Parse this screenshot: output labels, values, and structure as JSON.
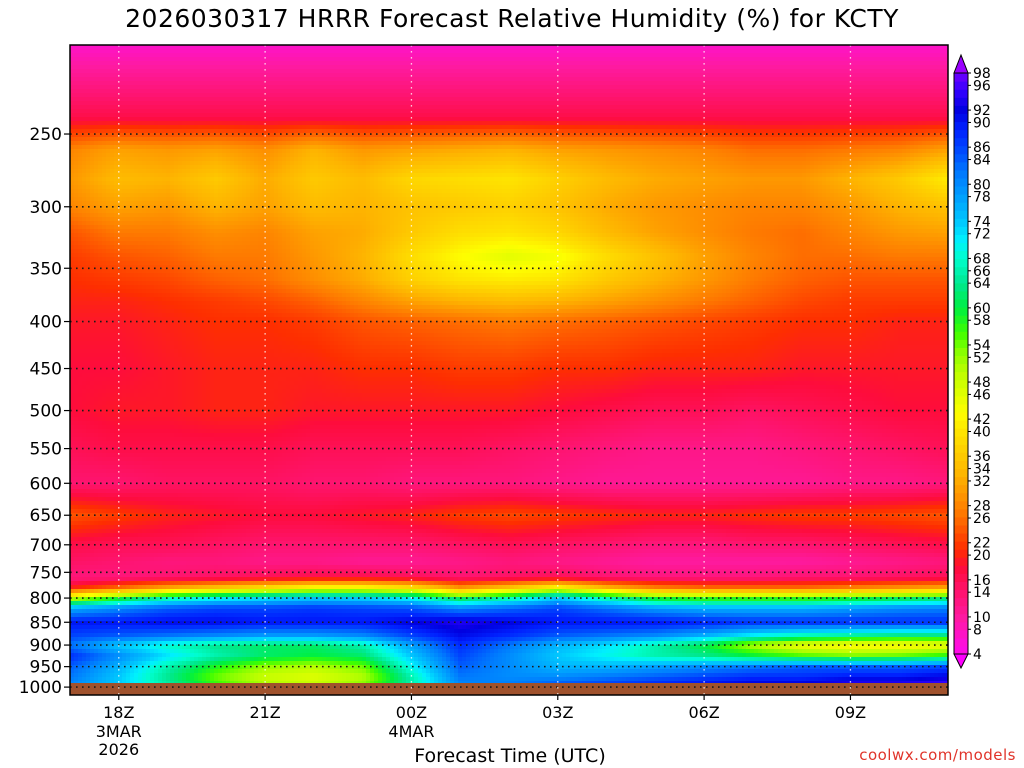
{
  "chart_data": {
    "type": "heatmap",
    "title": "2026030317 HRRR Forecast Relative Humidity (%) for KCTY",
    "xlabel": "Forecast Time (UTC)",
    "ylabel": "",
    "credit": "coolwx.com/models",
    "y_scale": "log",
    "ylim": [
      1020,
      200
    ],
    "y_ticks": [
      250,
      300,
      350,
      400,
      450,
      500,
      550,
      600,
      650,
      700,
      750,
      800,
      850,
      900,
      950,
      1000
    ],
    "x_ticks": [
      {
        "label": "18Z",
        "sub": [
          "3MAR",
          "2026"
        ]
      },
      {
        "label": "21Z",
        "sub": []
      },
      {
        "label": "00Z",
        "sub": [
          "4MAR"
        ]
      },
      {
        "label": "03Z",
        "sub": []
      },
      {
        "label": "06Z",
        "sub": []
      },
      {
        "label": "09Z",
        "sub": []
      }
    ],
    "times": [
      "17Z",
      "18Z",
      "19Z",
      "20Z",
      "21Z",
      "22Z",
      "23Z",
      "00Z",
      "01Z",
      "02Z",
      "03Z",
      "04Z",
      "05Z",
      "06Z",
      "07Z",
      "08Z",
      "09Z",
      "10Z",
      "11Z"
    ],
    "levels": [
      200,
      240,
      260,
      280,
      300,
      320,
      340,
      360,
      380,
      400,
      450,
      500,
      550,
      600,
      650,
      700,
      730,
      760,
      780,
      800,
      820,
      850,
      880,
      900,
      925,
      950,
      975,
      1000,
      1010
    ],
    "rh": [
      [
        7,
        7,
        7,
        7,
        7,
        7,
        7,
        7,
        7,
        7,
        7,
        7,
        7,
        7,
        7,
        7,
        7,
        7,
        7
      ],
      [
        17,
        17,
        17,
        17,
        17,
        17,
        17,
        17,
        17,
        17,
        17,
        17,
        17,
        17,
        17,
        17,
        17,
        17,
        17
      ],
      [
        28,
        31,
        30,
        31,
        29,
        33,
        30,
        31,
        32,
        33,
        31,
        30,
        29,
        28,
        26,
        26,
        27,
        28,
        31
      ],
      [
        30,
        34,
        33,
        36,
        32,
        36,
        34,
        38,
        39,
        40,
        37,
        34,
        32,
        31,
        30,
        30,
        33,
        36,
        41
      ],
      [
        28,
        31,
        30,
        33,
        31,
        34,
        33,
        35,
        36,
        37,
        35,
        32,
        30,
        29,
        28,
        28,
        30,
        33,
        35
      ],
      [
        24,
        27,
        27,
        29,
        28,
        31,
        32,
        36,
        39,
        40,
        38,
        34,
        31,
        29,
        27,
        26,
        28,
        30,
        31
      ],
      [
        22,
        24,
        25,
        27,
        27,
        30,
        33,
        39,
        43,
        46,
        44,
        39,
        35,
        31,
        28,
        26,
        26,
        27,
        27
      ],
      [
        21,
        22,
        23,
        25,
        26,
        29,
        32,
        37,
        40,
        41,
        40,
        36,
        33,
        30,
        27,
        25,
        24,
        24,
        24
      ],
      [
        20,
        20,
        21,
        22,
        23,
        25,
        28,
        31,
        33,
        34,
        33,
        31,
        29,
        27,
        25,
        23,
        22,
        22,
        22
      ],
      [
        19,
        19,
        20,
        21,
        21,
        22,
        24,
        25,
        26,
        27,
        26,
        25,
        24,
        23,
        22,
        21,
        21,
        20,
        20
      ],
      [
        18,
        18,
        19,
        20,
        20,
        20,
        21,
        21,
        22,
        22,
        21,
        21,
        20,
        20,
        20,
        19,
        19,
        19,
        19
      ],
      [
        18,
        19,
        19,
        20,
        20,
        19,
        19,
        19,
        19,
        19,
        18,
        17,
        16,
        16,
        15,
        16,
        17,
        18,
        18
      ],
      [
        16,
        17,
        17,
        17,
        17,
        16,
        16,
        16,
        16,
        15,
        14,
        13,
        12,
        12,
        12,
        13,
        14,
        15,
        16
      ],
      [
        14,
        14,
        15,
        15,
        15,
        14,
        14,
        13,
        13,
        13,
        12,
        11,
        11,
        11,
        11,
        11,
        12,
        12,
        13
      ],
      [
        24,
        22,
        20,
        19,
        18,
        18,
        19,
        20,
        22,
        23,
        22,
        21,
        20,
        20,
        21,
        22,
        22,
        23,
        24
      ],
      [
        17,
        16,
        16,
        15,
        14,
        14,
        14,
        14,
        15,
        16,
        15,
        14,
        13,
        13,
        14,
        14,
        15,
        16,
        17
      ],
      [
        15,
        14,
        13,
        13,
        12,
        12,
        11,
        11,
        12,
        13,
        12,
        11,
        10,
        10,
        10,
        10,
        11,
        12,
        13
      ],
      [
        13,
        13,
        14,
        15,
        16,
        17,
        17,
        16,
        14,
        15,
        16,
        14,
        13,
        13,
        13,
        14,
        14,
        15,
        16
      ],
      [
        20,
        26,
        32,
        36,
        40,
        44,
        44,
        40,
        30,
        36,
        44,
        34,
        28,
        26,
        26,
        26,
        28,
        30,
        32
      ],
      [
        48,
        58,
        66,
        70,
        72,
        74,
        73,
        70,
        60,
        66,
        74,
        66,
        58,
        56,
        56,
        56,
        58,
        60,
        62
      ],
      [
        76,
        80,
        84,
        86,
        86,
        87,
        86,
        85,
        80,
        83,
        86,
        82,
        78,
        76,
        76,
        76,
        78,
        80,
        81
      ],
      [
        90,
        90,
        91,
        91,
        90,
        90,
        90,
        92,
        94,
        92,
        90,
        90,
        90,
        89,
        88,
        88,
        88,
        88,
        88
      ],
      [
        86,
        84,
        82,
        80,
        78,
        78,
        80,
        86,
        91,
        88,
        84,
        82,
        80,
        76,
        70,
        66,
        64,
        62,
        62
      ],
      [
        82,
        74,
        68,
        64,
        62,
        62,
        66,
        78,
        88,
        82,
        76,
        72,
        66,
        60,
        50,
        44,
        42,
        42,
        44
      ],
      [
        88,
        80,
        72,
        66,
        62,
        60,
        62,
        74,
        86,
        80,
        74,
        70,
        66,
        64,
        60,
        56,
        54,
        55,
        58
      ],
      [
        84,
        76,
        66,
        58,
        52,
        50,
        54,
        70,
        84,
        80,
        76,
        76,
        78,
        80,
        82,
        84,
        84,
        84,
        86
      ],
      [
        82,
        74,
        64,
        54,
        48,
        46,
        50,
        66,
        82,
        80,
        80,
        82,
        84,
        86,
        88,
        88,
        90,
        90,
        92
      ],
      [
        80,
        74,
        66,
        58,
        52,
        50,
        54,
        66,
        80,
        82,
        86,
        88,
        90,
        92,
        94,
        94,
        96,
        96,
        97
      ],
      [
        80,
        74,
        66,
        58,
        52,
        50,
        54,
        66,
        80,
        82,
        86,
        88,
        90,
        92,
        94,
        94,
        96,
        96,
        97
      ]
    ],
    "legend_ticks": [
      4,
      8,
      10,
      14,
      16,
      20,
      22,
      26,
      28,
      32,
      34,
      36,
      40,
      42,
      46,
      48,
      52,
      54,
      58,
      60,
      64,
      66,
      68,
      72,
      74,
      78,
      80,
      84,
      86,
      90,
      92,
      96,
      98
    ],
    "colormap": [
      [
        2,
        "#fe00fe"
      ],
      [
        6,
        "#fe10d8"
      ],
      [
        10,
        "#fe1aa0"
      ],
      [
        14,
        "#fe1470"
      ],
      [
        18,
        "#fe0c3c"
      ],
      [
        21,
        "#fe2e00"
      ],
      [
        24,
        "#fe5400"
      ],
      [
        27,
        "#fe7a00"
      ],
      [
        30,
        "#fe9800"
      ],
      [
        33,
        "#feb400"
      ],
      [
        37,
        "#fed000"
      ],
      [
        40,
        "#fee400"
      ],
      [
        43,
        "#fefe00"
      ],
      [
        46,
        "#e2fe00"
      ],
      [
        50,
        "#b8fe00"
      ],
      [
        53,
        "#88fe00"
      ],
      [
        56,
        "#40fe00"
      ],
      [
        60,
        "#00f040"
      ],
      [
        64,
        "#00e890"
      ],
      [
        68,
        "#00fecc"
      ],
      [
        71,
        "#00f0fe"
      ],
      [
        74,
        "#00c8fe"
      ],
      [
        78,
        "#00a0fe"
      ],
      [
        82,
        "#0078fe"
      ],
      [
        85,
        "#0050fe"
      ],
      [
        89,
        "#0020fe"
      ],
      [
        92,
        "#0000e0"
      ],
      [
        95,
        "#3000fe"
      ],
      [
        98,
        "#7000fe"
      ],
      [
        100,
        "#9a00fe"
      ]
    ],
    "grid": true,
    "surface_color": "#a0522d"
  }
}
